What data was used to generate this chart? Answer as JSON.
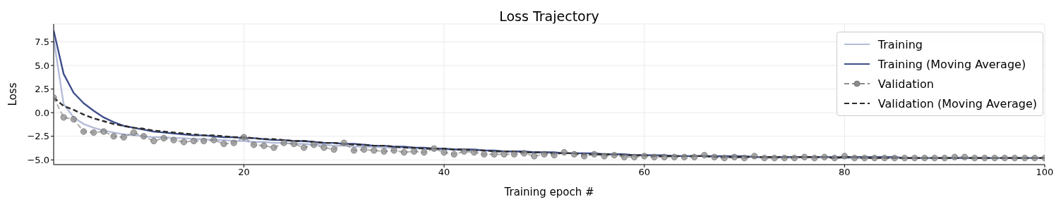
{
  "chart_data": {
    "type": "line",
    "title": "Loss Trajectory",
    "xlabel": "Training epoch #",
    "ylabel": "Loss",
    "x": [
      1,
      2,
      3,
      4,
      5,
      6,
      7,
      8,
      9,
      10,
      11,
      12,
      13,
      14,
      15,
      16,
      17,
      18,
      19,
      20,
      21,
      22,
      23,
      24,
      25,
      26,
      27,
      28,
      29,
      30,
      31,
      32,
      33,
      34,
      35,
      36,
      37,
      38,
      39,
      40,
      41,
      42,
      43,
      44,
      45,
      46,
      47,
      48,
      49,
      50,
      51,
      52,
      53,
      54,
      55,
      56,
      57,
      58,
      59,
      60,
      61,
      62,
      63,
      64,
      65,
      66,
      67,
      68,
      69,
      70,
      71,
      72,
      73,
      74,
      75,
      76,
      77,
      78,
      79,
      80,
      81,
      82,
      83,
      84,
      85,
      86,
      87,
      88,
      89,
      90,
      91,
      92,
      93,
      94,
      95,
      96,
      97,
      98,
      99,
      100
    ],
    "xlim": [
      1,
      100
    ],
    "xticks": [
      20,
      40,
      60,
      80,
      100
    ],
    "ylim": [
      -5.5,
      9.4
    ],
    "yticks": [
      {
        "value": -5,
        "label": "−5.0"
      },
      {
        "value": -2.5,
        "label": "−2.5"
      },
      {
        "value": 0,
        "label": "0.0"
      },
      {
        "value": 2.5,
        "label": "2.5"
      },
      {
        "value": 5,
        "label": "5.0"
      },
      {
        "value": 7.5,
        "label": "7.5"
      }
    ],
    "grid": true,
    "legend": "top right",
    "series": [
      {
        "name": "Training",
        "color": "#b4bcd9",
        "line_style": "solid",
        "marker": "none",
        "values": [
          7.8,
          0.9,
          -0.5,
          -1.2,
          -1.6,
          -1.9,
          -2.1,
          -2.3,
          -2.4,
          -2.5,
          -2.6,
          -2.6,
          -2.7,
          -2.7,
          -2.8,
          -2.8,
          -2.9,
          -2.9,
          -3.0,
          -3.0,
          -3.1,
          -3.1,
          -3.2,
          -3.2,
          -3.3,
          -3.3,
          -3.4,
          -3.4,
          -3.5,
          -3.5,
          -3.6,
          -3.6,
          -3.6,
          -3.7,
          -3.7,
          -3.7,
          -3.8,
          -3.8,
          -3.9,
          -3.9,
          -3.9,
          -4.0,
          -4.0,
          -4.0,
          -4.1,
          -4.1,
          -4.1,
          -4.2,
          -4.2,
          -4.2,
          -4.3,
          -4.3,
          -4.3,
          -4.3,
          -4.4,
          -4.4,
          -4.4,
          -4.5,
          -4.5,
          -4.5,
          -4.5,
          -4.6,
          -4.6,
          -4.6,
          -4.6,
          -4.6,
          -4.6,
          -4.7,
          -4.7,
          -4.7,
          -4.7,
          -4.7,
          -4.7,
          -4.7,
          -4.7,
          -4.7,
          -4.7,
          -4.7,
          -4.8,
          -4.8,
          -4.8,
          -4.8,
          -4.8,
          -4.8,
          -4.8,
          -4.8,
          -4.8,
          -4.8,
          -4.8,
          -4.8,
          -4.8,
          -4.8,
          -4.8,
          -4.8,
          -4.8,
          -4.8,
          -4.8,
          -4.8,
          -4.8,
          -4.8
        ]
      },
      {
        "name": "Training (Moving Average)",
        "color": "#3f4f8c",
        "line_style": "solid",
        "marker": "none",
        "values": [
          8.7,
          4.1,
          2.1,
          1.0,
          0.2,
          -0.5,
          -1.0,
          -1.4,
          -1.6,
          -1.8,
          -2.0,
          -2.1,
          -2.2,
          -2.3,
          -2.4,
          -2.4,
          -2.5,
          -2.6,
          -2.6,
          -2.7,
          -2.7,
          -2.8,
          -2.9,
          -2.9,
          -3.0,
          -3.0,
          -3.1,
          -3.2,
          -3.2,
          -3.3,
          -3.3,
          -3.4,
          -3.5,
          -3.5,
          -3.6,
          -3.6,
          -3.7,
          -3.7,
          -3.8,
          -3.8,
          -3.9,
          -3.9,
          -3.9,
          -4.0,
          -4.0,
          -4.1,
          -4.1,
          -4.1,
          -4.2,
          -4.2,
          -4.2,
          -4.3,
          -4.3,
          -4.3,
          -4.3,
          -4.4,
          -4.4,
          -4.4,
          -4.5,
          -4.5,
          -4.5,
          -4.5,
          -4.6,
          -4.6,
          -4.6,
          -4.6,
          -4.6,
          -4.6,
          -4.6,
          -4.6,
          -4.7,
          -4.7,
          -4.7,
          -4.7,
          -4.7,
          -4.7,
          -4.7,
          -4.7,
          -4.7,
          -4.7,
          -4.7,
          -4.7,
          -4.7,
          -4.7,
          -4.7,
          -4.8,
          -4.8,
          -4.8,
          -4.8,
          -4.8,
          -4.8,
          -4.8,
          -4.8,
          -4.8,
          -4.8,
          -4.8,
          -4.8,
          -4.8,
          -4.8,
          -4.8
        ]
      },
      {
        "name": "Validation",
        "color": "#8c8c8c",
        "line_style": "dashed",
        "marker": "circle",
        "values": [
          1.6,
          -0.5,
          -0.7,
          -2.0,
          -2.1,
          -2.0,
          -2.5,
          -2.6,
          -2.1,
          -2.5,
          -3.0,
          -2.7,
          -2.9,
          -3.1,
          -3.0,
          -3.0,
          -2.9,
          -3.3,
          -3.2,
          -2.6,
          -3.4,
          -3.5,
          -3.7,
          -3.2,
          -3.3,
          -3.7,
          -3.4,
          -3.7,
          -3.9,
          -3.2,
          -4.0,
          -3.9,
          -4.0,
          -4.1,
          -4.0,
          -4.2,
          -4.1,
          -4.2,
          -3.8,
          -4.2,
          -4.4,
          -4.1,
          -4.2,
          -4.4,
          -4.4,
          -4.4,
          -4.4,
          -4.3,
          -4.6,
          -4.4,
          -4.5,
          -4.2,
          -4.4,
          -4.6,
          -4.4,
          -4.6,
          -4.5,
          -4.7,
          -4.7,
          -4.6,
          -4.7,
          -4.7,
          -4.7,
          -4.7,
          -4.7,
          -4.5,
          -4.7,
          -4.8,
          -4.7,
          -4.8,
          -4.6,
          -4.8,
          -4.8,
          -4.8,
          -4.8,
          -4.7,
          -4.8,
          -4.7,
          -4.8,
          -4.6,
          -4.8,
          -4.8,
          -4.8,
          -4.8,
          -4.8,
          -4.8,
          -4.8,
          -4.8,
          -4.8,
          -4.8,
          -4.7,
          -4.7,
          -4.8,
          -4.8,
          -4.8,
          -4.8,
          -4.8,
          -4.8,
          -4.8,
          -4.8
        ]
      },
      {
        "name": "Validation (Moving Average)",
        "color": "#2b2b2b",
        "line_style": "dashed",
        "marker": "none",
        "values": [
          1.6,
          0.7,
          0.3,
          -0.2,
          -0.6,
          -0.9,
          -1.2,
          -1.4,
          -1.6,
          -1.7,
          -1.9,
          -2.0,
          -2.1,
          -2.2,
          -2.3,
          -2.4,
          -2.4,
          -2.5,
          -2.6,
          -2.6,
          -2.7,
          -2.8,
          -2.8,
          -2.9,
          -3.0,
          -3.0,
          -3.1,
          -3.2,
          -3.2,
          -3.3,
          -3.4,
          -3.4,
          -3.5,
          -3.5,
          -3.6,
          -3.7,
          -3.7,
          -3.8,
          -3.8,
          -3.8,
          -3.9,
          -3.9,
          -4.0,
          -4.0,
          -4.1,
          -4.1,
          -4.1,
          -4.2,
          -4.2,
          -4.2,
          -4.3,
          -4.3,
          -4.3,
          -4.4,
          -4.4,
          -4.4,
          -4.4,
          -4.5,
          -4.5,
          -4.5,
          -4.6,
          -4.6,
          -4.6,
          -4.6,
          -4.6,
          -4.6,
          -4.7,
          -4.7,
          -4.7,
          -4.7,
          -4.7,
          -4.7,
          -4.7,
          -4.7,
          -4.7,
          -4.7,
          -4.7,
          -4.7,
          -4.8,
          -4.7,
          -4.7,
          -4.8,
          -4.8,
          -4.8,
          -4.8,
          -4.8,
          -4.8,
          -4.8,
          -4.8,
          -4.8,
          -4.8,
          -4.8,
          -4.8,
          -4.8,
          -4.8,
          -4.8,
          -4.8,
          -4.8,
          -4.8,
          -4.8
        ]
      }
    ]
  }
}
